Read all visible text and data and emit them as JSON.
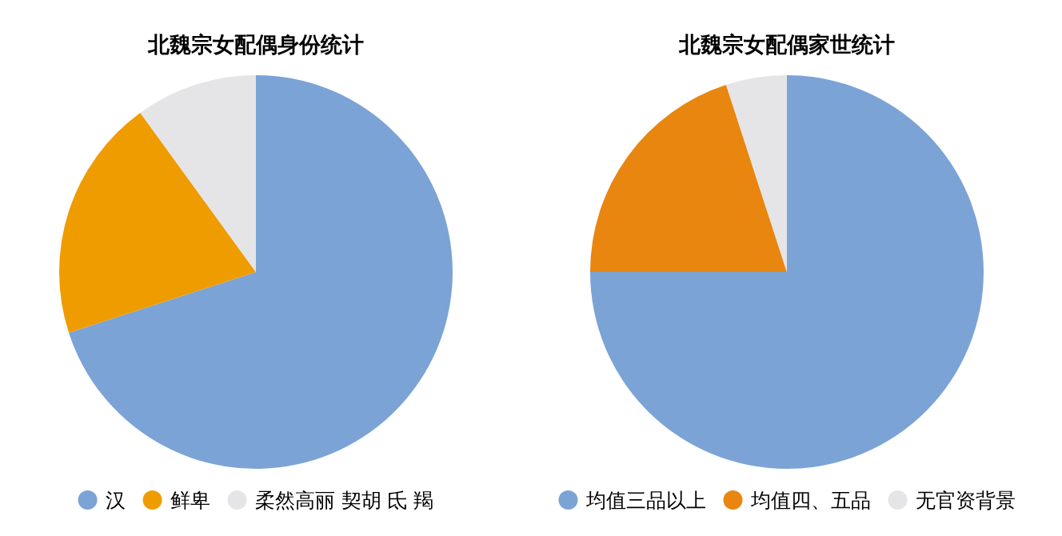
{
  "chart_data": [
    {
      "type": "pie",
      "title": "北魏宗女配偶身份统计",
      "categories": [
        "汉",
        "鲜卑",
        "柔然高丽 契胡 氐 羯"
      ],
      "values": [
        70,
        20,
        10
      ],
      "colors": [
        "#7ba3d6",
        "#ef9c00",
        "#e5e5e7"
      ],
      "legend": "bottom"
    },
    {
      "type": "pie",
      "title": "北魏宗女配偶家世统计",
      "categories": [
        "均值三品以上",
        "均值四、五品",
        "无官资背景"
      ],
      "values": [
        75,
        20,
        5
      ],
      "colors": [
        "#7ba3d6",
        "#e8860f",
        "#e5e5e7"
      ],
      "legend": "bottom"
    }
  ]
}
